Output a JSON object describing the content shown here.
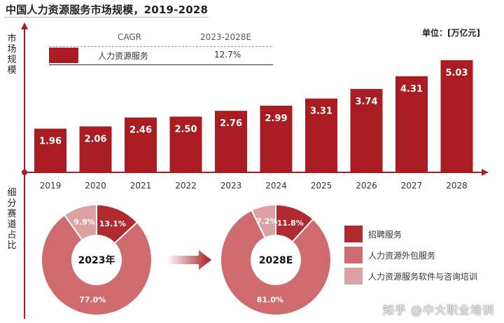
{
  "title": "中国人力资源服务市场规模，2019-2028",
  "unit_label": "单位：[万亿元]",
  "upper_vlabel": "市场规模",
  "lower_vlabel": "细分赛道占比",
  "cagr": {
    "header_left": "CAGR",
    "header_right": "2023-2028E",
    "series_name": "人力资源服务",
    "value": "12.7%"
  },
  "colors": {
    "bar": "#a81c22",
    "recruit": "#b02a30",
    "outsourcing": "#cf6a6e",
    "software": "#dba1a3",
    "axis": "#a81c22"
  },
  "chart_data": [
    {
      "type": "bar",
      "categories": [
        "2019",
        "2020",
        "2021",
        "2022",
        "2023",
        "2024",
        "2025",
        "2026",
        "2027",
        "2028"
      ],
      "values": [
        1.96,
        2.06,
        2.46,
        2.5,
        2.76,
        2.99,
        3.31,
        3.74,
        4.31,
        5.03
      ],
      "value_labels": [
        "1.96",
        "2.06",
        "2.46",
        "2.50",
        "2.76",
        "2.99",
        "3.31",
        "3.74",
        "4.31",
        "5.03"
      ],
      "series": [
        {
          "name": "人力资源服务",
          "values": [
            1.96,
            2.06,
            2.46,
            2.5,
            2.76,
            2.99,
            3.31,
            3.74,
            4.31,
            5.03
          ]
        }
      ],
      "ylabel": "市场规模",
      "ylim": [
        0,
        6
      ],
      "grid": false
    },
    {
      "type": "pie",
      "center_label": "2023年",
      "labels": [
        "招聘服务",
        "人力资源外包服务",
        "人力资源服务软件与咨询培训"
      ],
      "values": [
        13.1,
        77.0,
        9.9
      ],
      "value_labels": [
        "13.1%",
        "77.0%",
        "9.9%"
      ]
    },
    {
      "type": "pie",
      "center_label": "2028E",
      "labels": [
        "招聘服务",
        "人力资源外包服务",
        "人力资源服务软件与咨询培训"
      ],
      "values": [
        11.8,
        81.0,
        7.2
      ],
      "value_labels": [
        "11.8%",
        "81.0%",
        "7.2%"
      ]
    }
  ],
  "legend": [
    {
      "label": "招聘服务",
      "color": "#b02a30"
    },
    {
      "label": "人力资源外包服务",
      "color": "#cf6a6e"
    },
    {
      "label": "人力资源服务软件与咨询培训",
      "color": "#dba1a3"
    }
  ],
  "watermark": "知乎 @中大职业培训"
}
